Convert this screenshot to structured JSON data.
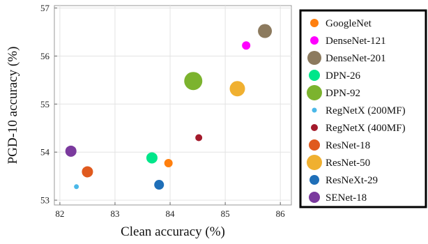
{
  "chart_data": {
    "type": "scatter",
    "title": "",
    "xlabel": "Clean accuracy (%)",
    "ylabel": "PGD-10 accuracy (%)",
    "xlim": [
      81.9,
      86.2
    ],
    "ylim": [
      52.9,
      57.05
    ],
    "xticks": [
      82,
      83,
      84,
      85,
      86
    ],
    "yticks": [
      53,
      54,
      55,
      56,
      57
    ],
    "grid": true,
    "legend_position": "right",
    "series": [
      {
        "name": "GoogleNet",
        "color": "#ff7f0e",
        "points": [
          {
            "x": 83.97,
            "y": 53.77
          }
        ],
        "marker_size": 6
      },
      {
        "name": "DenseNet-121",
        "color": "#ff00ff",
        "points": [
          {
            "x": 85.38,
            "y": 56.22
          }
        ],
        "marker_size": 6
      },
      {
        "name": "DenseNet-201",
        "color": "#8c7a5e",
        "points": [
          {
            "x": 85.72,
            "y": 56.52
          }
        ],
        "marker_size": 10
      },
      {
        "name": "DPN-26",
        "color": "#00e68a",
        "points": [
          {
            "x": 83.67,
            "y": 53.88
          }
        ],
        "marker_size": 8
      },
      {
        "name": "DPN-92",
        "color": "#7cb32e",
        "points": [
          {
            "x": 84.42,
            "y": 55.48
          }
        ],
        "marker_size": 13
      },
      {
        "name": "RegNetX (200MF)",
        "color": "#4bb8e8",
        "points": [
          {
            "x": 82.3,
            "y": 53.28
          }
        ],
        "marker_size": 3.5
      },
      {
        "name": "RegNetX (400MF)",
        "color": "#a31a2b",
        "points": [
          {
            "x": 84.52,
            "y": 54.3
          }
        ],
        "marker_size": 5
      },
      {
        "name": "ResNet-18",
        "color": "#e05a1e",
        "points": [
          {
            "x": 82.5,
            "y": 53.59
          }
        ],
        "marker_size": 8
      },
      {
        "name": "ResNet-50",
        "color": "#f0b030",
        "points": [
          {
            "x": 85.22,
            "y": 55.32
          }
        ],
        "marker_size": 11
      },
      {
        "name": "ResNeXt-29",
        "color": "#1f6fb8",
        "points": [
          {
            "x": 83.8,
            "y": 53.32
          }
        ],
        "marker_size": 7
      },
      {
        "name": "SENet-18",
        "color": "#7b3a9e",
        "points": [
          {
            "x": 82.2,
            "y": 54.02
          }
        ],
        "marker_size": 8
      }
    ]
  }
}
